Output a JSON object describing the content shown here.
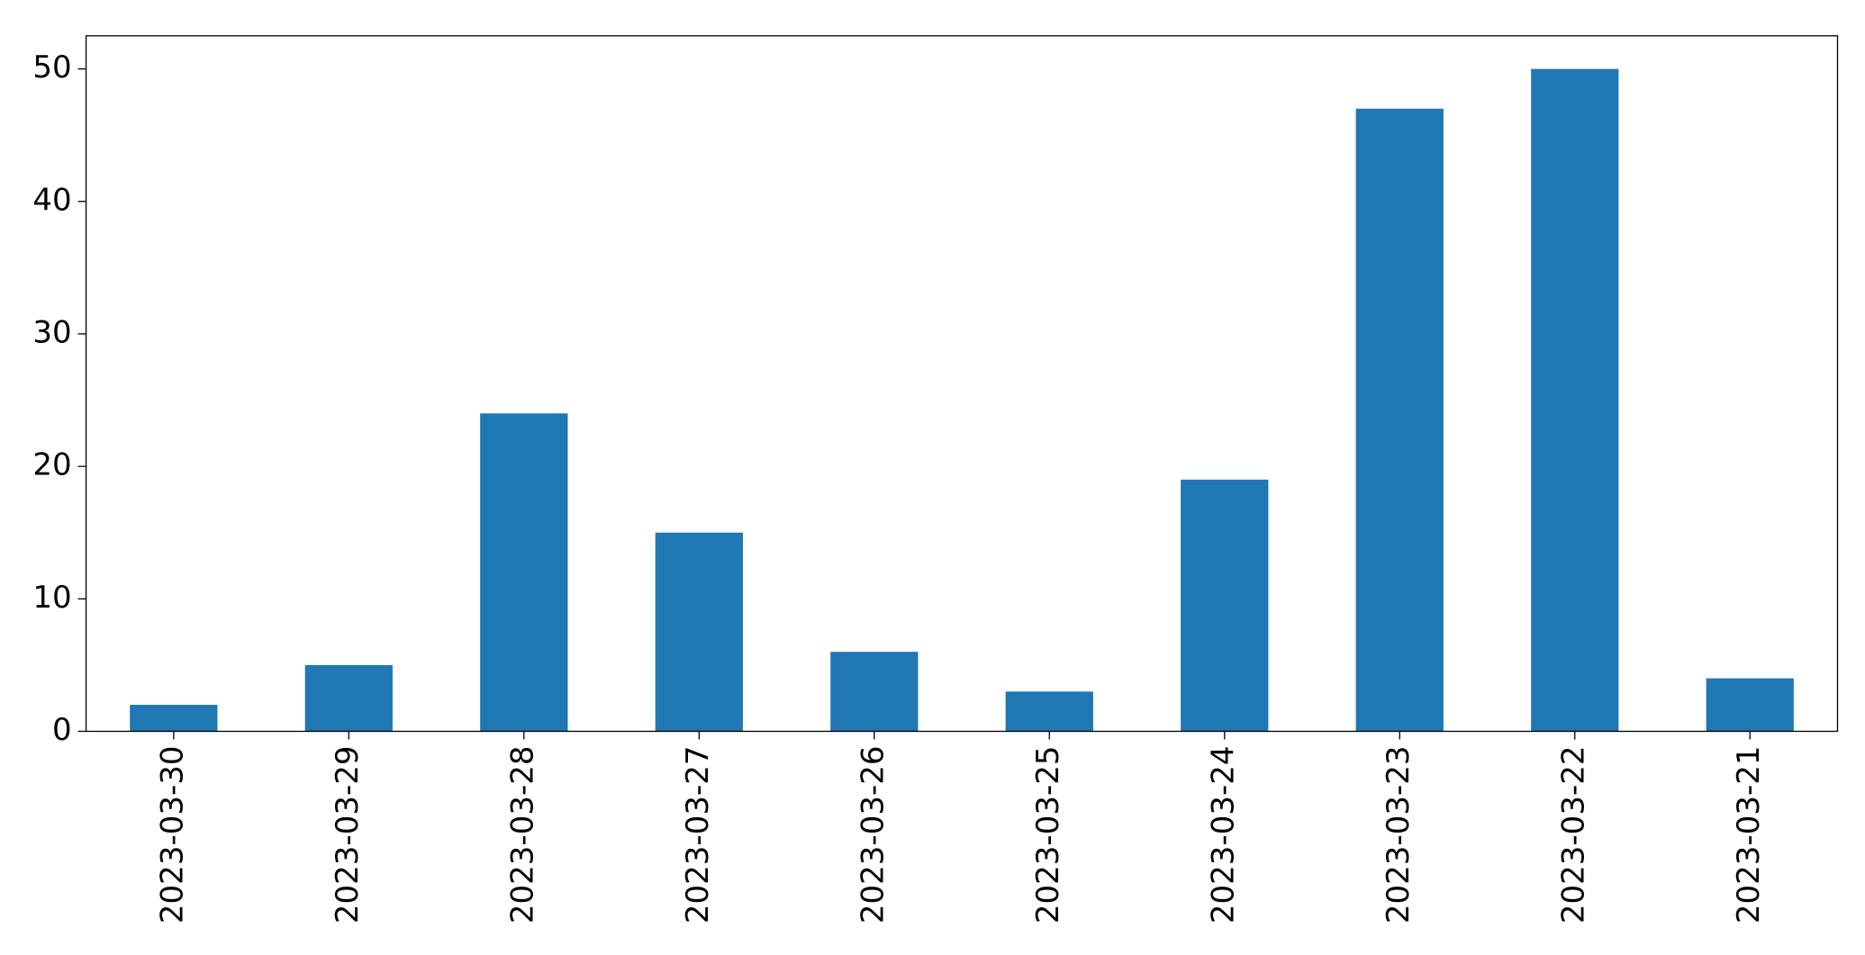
{
  "chart_data": {
    "type": "bar",
    "categories": [
      "2023-03-30",
      "2023-03-29",
      "2023-03-28",
      "2023-03-27",
      "2023-03-26",
      "2023-03-25",
      "2023-03-24",
      "2023-03-23",
      "2023-03-22",
      "2023-03-21"
    ],
    "values": [
      2,
      5,
      24,
      15,
      6,
      3,
      19,
      47,
      50,
      4
    ],
    "color": "#1f77b4",
    "ylim": [
      0,
      52.5
    ],
    "yticks": [
      0,
      10,
      20,
      30,
      40,
      50
    ],
    "grid": false
  }
}
